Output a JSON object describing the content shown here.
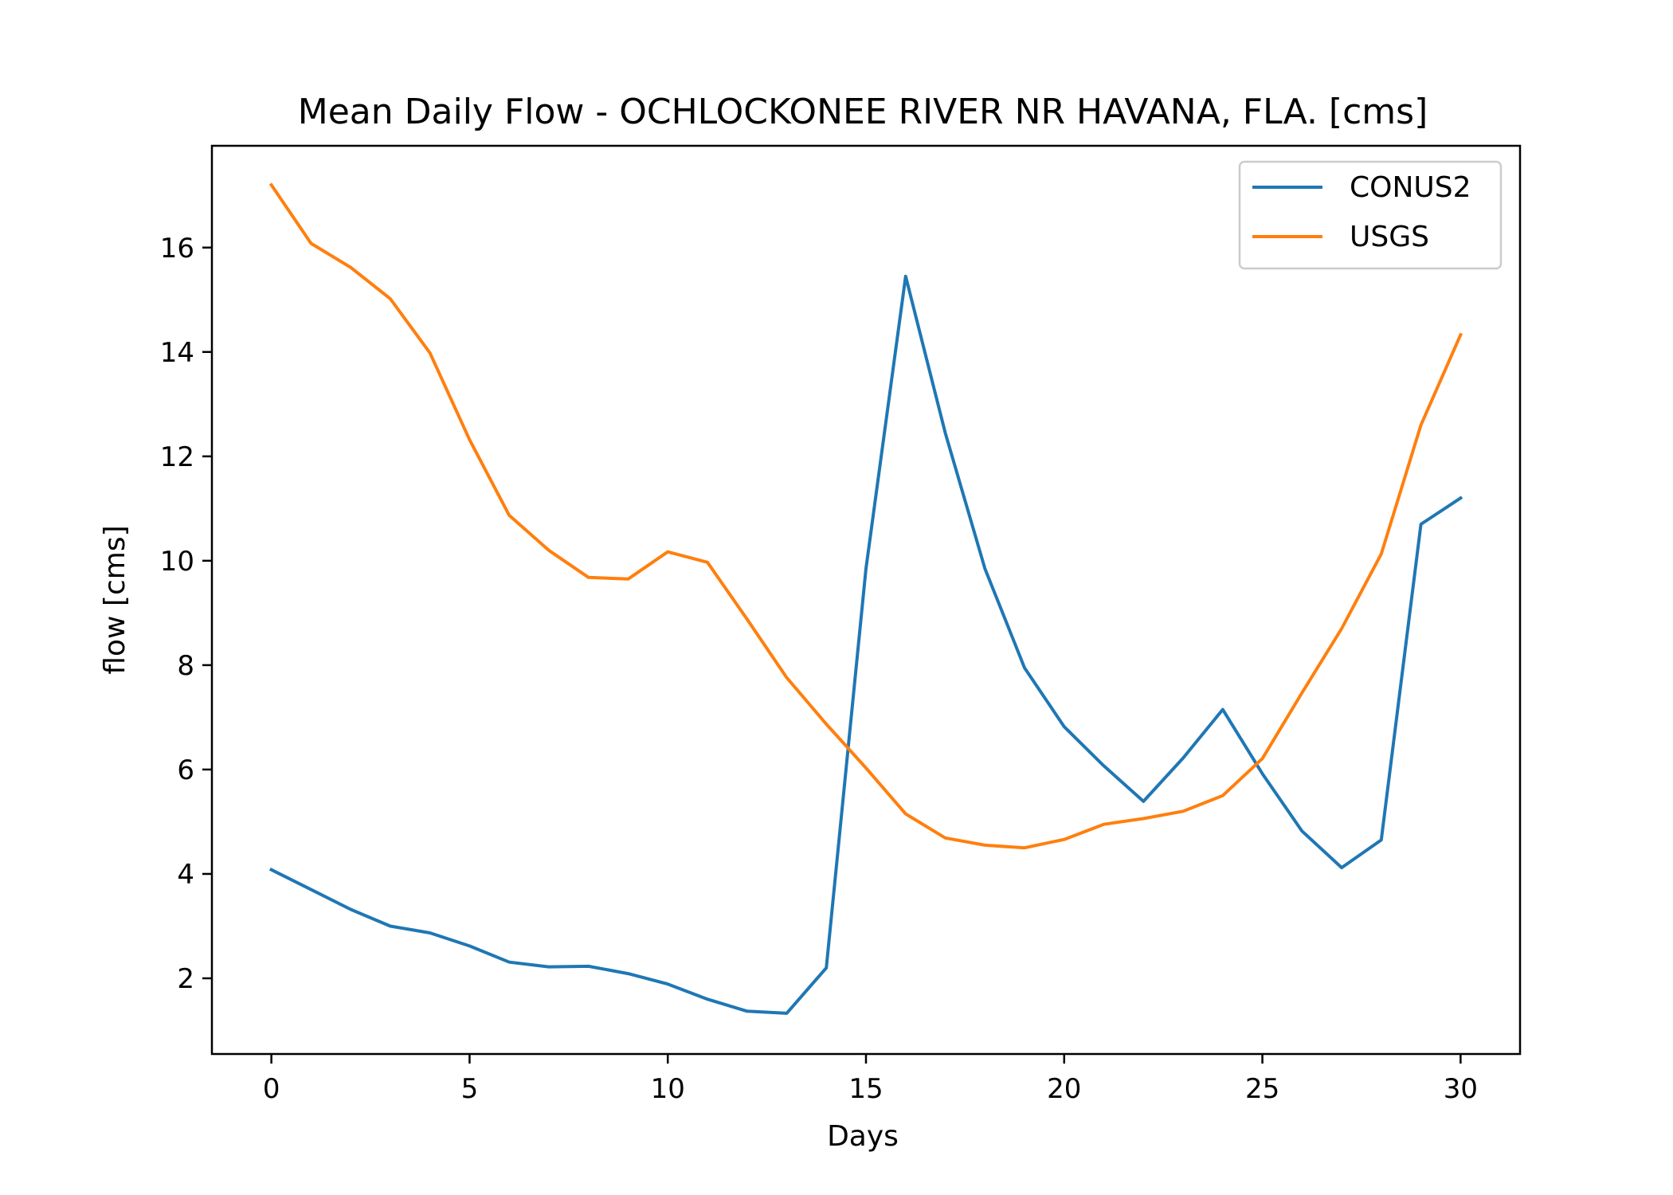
{
  "chart_data": {
    "type": "line",
    "title": "Mean Daily Flow - OCHLOCKONEE RIVER NR HAVANA, FLA. [cms]",
    "xlabel": "Days",
    "ylabel": "flow [cms]",
    "xlim": [
      -1.5,
      31.5
    ],
    "ylim": [
      0.55,
      17.95
    ],
    "xticks": [
      0,
      5,
      10,
      15,
      20,
      25,
      30
    ],
    "yticks": [
      2,
      4,
      6,
      8,
      10,
      12,
      14,
      16
    ],
    "legend": "upper-right",
    "grid": false,
    "x": [
      0,
      1,
      2,
      3,
      4,
      5,
      6,
      7,
      8,
      9,
      10,
      11,
      12,
      13,
      14,
      15,
      16,
      17,
      18,
      19,
      20,
      21,
      22,
      23,
      24,
      25,
      26,
      27,
      28,
      29,
      30
    ],
    "series": [
      {
        "name": "CONUS2",
        "color": "#1f77b4",
        "values": [
          4.08,
          3.7,
          3.32,
          3.0,
          2.87,
          2.62,
          2.31,
          2.22,
          2.23,
          2.09,
          1.89,
          1.6,
          1.37,
          1.33,
          2.2,
          9.85,
          15.45,
          12.45,
          9.85,
          7.95,
          6.82,
          6.07,
          5.39,
          6.22,
          7.15,
          5.92,
          4.82,
          4.12,
          4.65,
          10.7,
          11.2
        ]
      },
      {
        "name": "USGS",
        "color": "#ff7f0e",
        "values": [
          17.2,
          16.08,
          15.62,
          15.02,
          13.98,
          12.32,
          10.87,
          10.2,
          9.68,
          9.65,
          10.17,
          9.97,
          8.88,
          7.76,
          6.87,
          6.03,
          5.15,
          4.69,
          4.55,
          4.5,
          4.66,
          4.95,
          5.06,
          5.2,
          5.5,
          6.21,
          7.47,
          8.7,
          10.13,
          12.6,
          14.33
        ]
      }
    ]
  }
}
